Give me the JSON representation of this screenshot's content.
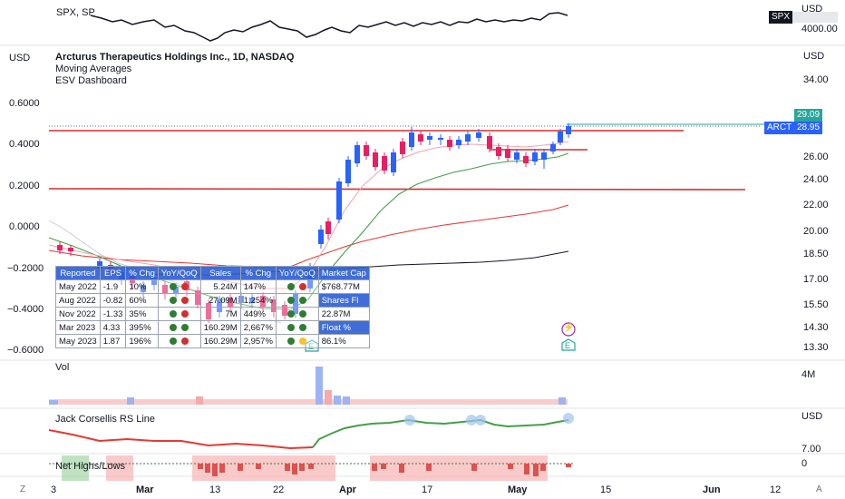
{
  "compare_pane": {
    "label": "SPX, SP",
    "currency": "USD",
    "badge": "SPX",
    "price": "4000.00"
  },
  "main_pane": {
    "left_currency": "USD",
    "right_currency": "USD",
    "title": "Arcturus Therapeutics Holdings Inc., 1D, NASDAQ",
    "indicator_1": "Moving Averages",
    "indicator_2": "ESV Dashboard",
    "right_scale": [
      "34.00",
      "29.09",
      "28.95",
      "26.00",
      "24.00",
      "22.00",
      "20.00",
      "18.50",
      "17.00",
      "15.50",
      "14.30",
      "13.30"
    ],
    "left_scale": [
      "0.6000",
      "0.4000",
      "0.2000",
      "0.0000",
      "−0.2000",
      "−0.4000",
      "−0.6000"
    ],
    "symbol_badge": "ARCT",
    "last_close": "29.09",
    "last_price": "28.95",
    "earnings_marker": "E",
    "lightning_marker": "⚡"
  },
  "dashboard": {
    "headers": [
      "Reported",
      "EPS",
      "% Chg",
      "YoY/QoQ",
      "Sales",
      "% Chg",
      "YoY/QoQ",
      "Market Cap"
    ],
    "rows": [
      {
        "reported": "May 2022",
        "eps": "-1.9",
        "eps_chg": "10%",
        "sales": "5.24M",
        "sales_chg": "147%",
        "side": "$768.77M",
        "dots": [
          "green",
          "red",
          "green",
          "red"
        ]
      },
      {
        "reported": "Aug 2022",
        "eps": "-0.82",
        "eps_chg": "60%",
        "sales": "27.09M",
        "sales_chg": "1,254%",
        "side": "Shares Fl",
        "dots": [
          "green",
          "red",
          "green",
          "green"
        ]
      },
      {
        "reported": "Nov 2022",
        "eps": "-1.33",
        "eps_chg": "35%",
        "sales": "7M",
        "sales_chg": "449%",
        "side": "22.87M",
        "dots": [
          "green",
          "red",
          "green",
          "green"
        ]
      },
      {
        "reported": "Mar 2023",
        "eps": "4.33",
        "eps_chg": "395%",
        "sales": "160.29M",
        "sales_chg": "2,667%",
        "side": "Float %",
        "dots": [
          "green",
          "green",
          "green",
          "green"
        ]
      },
      {
        "reported": "May 2023",
        "eps": "1.87",
        "eps_chg": "196%",
        "sales": "160.29M",
        "sales_chg": "2,957%",
        "side": "86.1%",
        "dots": [
          "green",
          "red",
          "green",
          "yellow"
        ]
      }
    ]
  },
  "volume_pane": {
    "label": "Vol",
    "scale": "4M"
  },
  "rs_pane": {
    "label": "Jack Corsellis RS Line",
    "currency": "USD",
    "scale": "7.00"
  },
  "nh_pane": {
    "label": "Net Highs/Lows",
    "scale": "0"
  },
  "time_axis": [
    "3",
    "Mar",
    "13",
    "22",
    "Apr",
    "17",
    "May",
    "15",
    "Jun",
    "12"
  ],
  "corner_left": "Z",
  "corner_right": "A",
  "colors": {
    "up": "#2962ff",
    "down": "#e91e63",
    "support": "#d32f2f",
    "ma_green": "#43a047",
    "ma_red": "#e53935",
    "ma_black": "#131722",
    "price_line": "#26a69a"
  }
}
